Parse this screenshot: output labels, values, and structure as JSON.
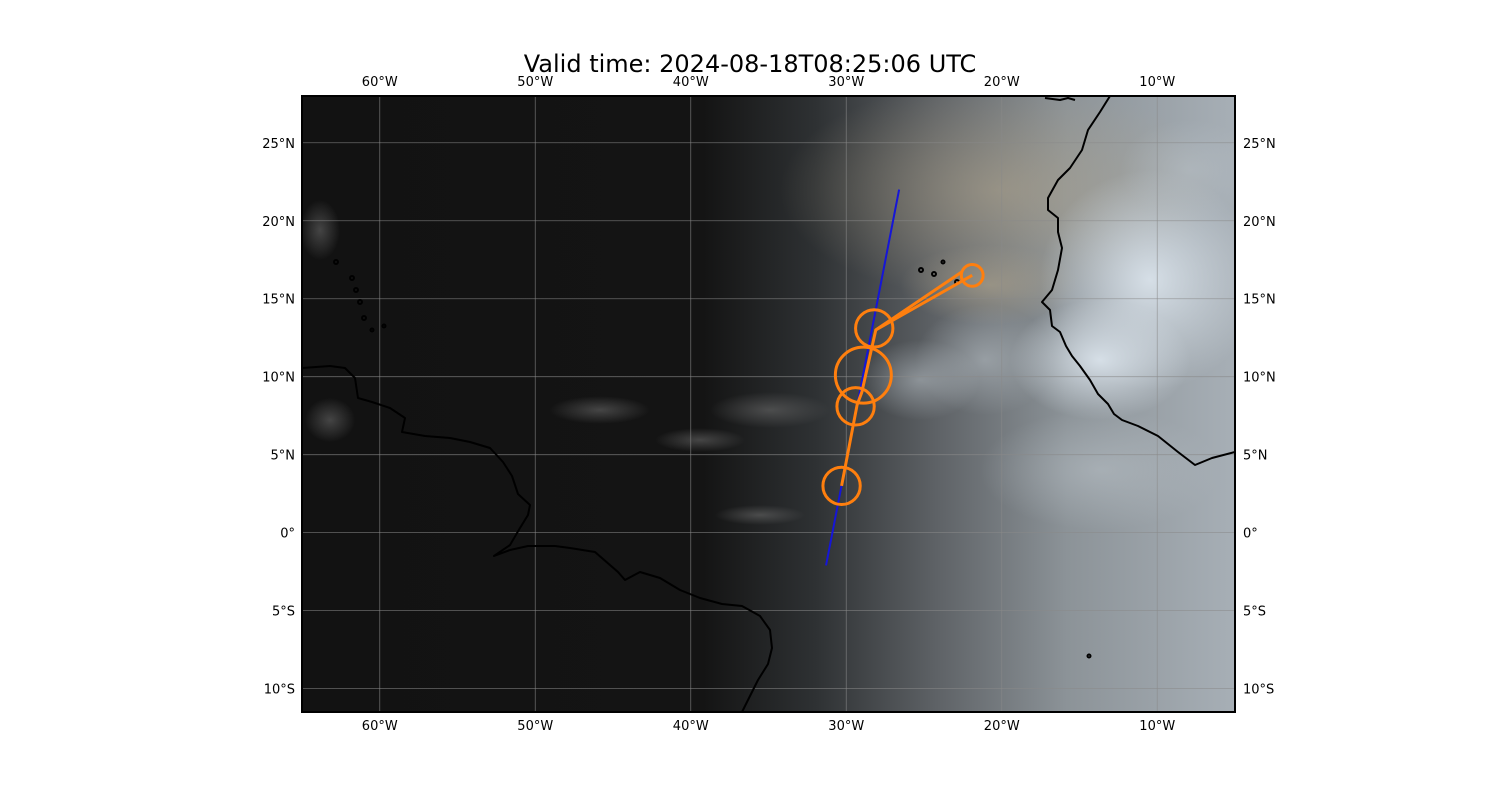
{
  "title": "Valid time: 2024-08-18T08:25:06 UTC",
  "map": {
    "extent": {
      "lon": [
        -65,
        -5
      ],
      "lat": [
        -11.5,
        28
      ]
    },
    "lon_ticks": [
      {
        "value": -60,
        "label": "60°W"
      },
      {
        "value": -50,
        "label": "50°W"
      },
      {
        "value": -40,
        "label": "40°W"
      },
      {
        "value": -30,
        "label": "30°W"
      },
      {
        "value": -20,
        "label": "20°W"
      },
      {
        "value": -10,
        "label": "10°W"
      }
    ],
    "lat_ticks": [
      {
        "value": 25,
        "label": "25°N"
      },
      {
        "value": 20,
        "label": "20°N"
      },
      {
        "value": 15,
        "label": "15°N"
      },
      {
        "value": 10,
        "label": "10°N"
      },
      {
        "value": 5,
        "label": "5°N"
      },
      {
        "value": 0,
        "label": "0°"
      },
      {
        "value": -5,
        "label": "5°S"
      },
      {
        "value": -10,
        "label": "10°S"
      }
    ],
    "colors": {
      "night": "#121212",
      "day_cloud": "#c6cfd8",
      "track_line": "#1515d8",
      "flight_path": "#ff7f0e",
      "coastline": "#000000",
      "gridline": "#8a8a8a"
    },
    "blue_line": [
      {
        "lon": -31.3,
        "lat": -2.1
      },
      {
        "lon": -26.6,
        "lat": 22.0
      }
    ],
    "orange_path": [
      {
        "lon": -21.9,
        "lat": 16.5
      },
      {
        "lon": -28.1,
        "lat": 13.0
      },
      {
        "lon": -22.6,
        "lat": 16.7
      },
      {
        "lon": -28.1,
        "lat": 13.0
      },
      {
        "lon": -29.0,
        "lat": 9.0
      },
      {
        "lon": -29.3,
        "lat": 8.2
      },
      {
        "lon": -30.3,
        "lat": 3.0
      }
    ],
    "orange_circles": [
      {
        "lon": -21.9,
        "lat": 16.5,
        "r_deg": 0.7
      },
      {
        "lon": -28.2,
        "lat": 13.1,
        "r_deg": 1.2
      },
      {
        "lon": -28.9,
        "lat": 10.1,
        "r_deg": 1.8
      },
      {
        "lon": -29.4,
        "lat": 8.1,
        "r_deg": 1.2
      },
      {
        "lon": -30.3,
        "lat": 3.0,
        "r_deg": 1.2
      }
    ]
  }
}
